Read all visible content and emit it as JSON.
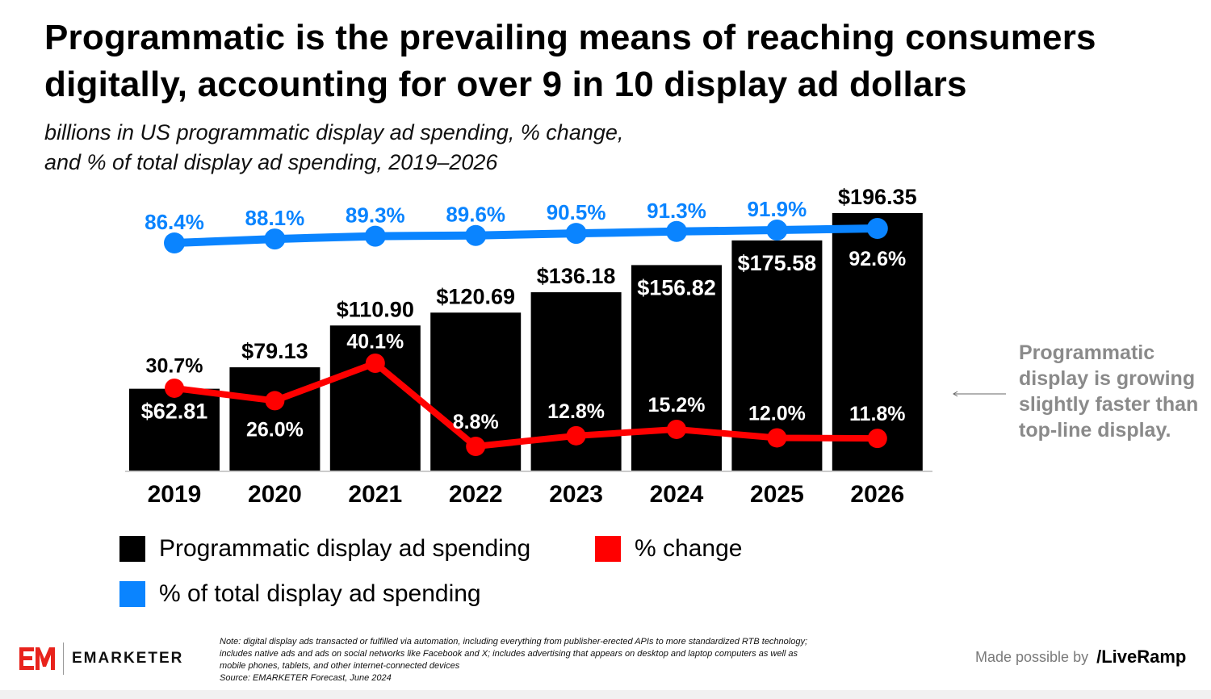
{
  "header": {
    "title": "Programmatic is the prevailing means of reaching consumers digitally, accounting for over 9 in 10 display ad dollars",
    "subtitle_line1": "billions in US programmatic display ad spending, % change,",
    "subtitle_line2": "and % of total display ad spending, 2019–2026"
  },
  "chart_data": {
    "type": "bar",
    "categories": [
      "2019",
      "2020",
      "2021",
      "2022",
      "2023",
      "2024",
      "2025",
      "2026"
    ],
    "series": [
      {
        "name": "Programmatic display ad spending",
        "type": "bar",
        "color": "#000000",
        "values": [
          62.81,
          79.13,
          110.9,
          120.69,
          136.18,
          156.82,
          175.58,
          196.35
        ],
        "labels": [
          "$62.81",
          "$79.13",
          "$110.90",
          "$120.69",
          "$136.18",
          "$156.82",
          "$175.58",
          "$196.35"
        ]
      },
      {
        "name": "% change",
        "type": "line",
        "color": "#ff0000",
        "values": [
          30.7,
          26.0,
          40.1,
          8.8,
          12.8,
          15.2,
          12.0,
          11.8
        ],
        "labels": [
          "30.7%",
          "26.0%",
          "40.1%",
          "8.8%",
          "12.8%",
          "15.2%",
          "12.0%",
          "11.8%"
        ]
      },
      {
        "name": "% of total display ad spending",
        "type": "line",
        "color": "#0a84ff",
        "values": [
          86.4,
          88.1,
          89.3,
          89.6,
          90.5,
          91.3,
          91.9,
          92.6
        ],
        "labels": [
          "86.4%",
          "88.1%",
          "89.3%",
          "89.6%",
          "90.5%",
          "91.3%",
          "91.9%",
          "92.6%"
        ]
      }
    ],
    "grid": false,
    "legend_position": "bottom-left"
  },
  "legend": {
    "spending": "Programmatic display ad spending",
    "change": "% change",
    "share": "% of total display ad spending"
  },
  "side_note": "Programmatic display is growing slightly faster than top-line display.",
  "footer": {
    "note_lines": [
      "Note: digital display ads transacted or fulfilled via automation, including everything from publisher-erected APIs to more standardized RTB technology;",
      "includes native ads and ads on social networks like Facebook and X; includes advertising that appears on desktop and laptop computers as well as",
      "mobile phones, tablets, and other internet-connected devices",
      "Source: EMARKETER Forecast, June 2024"
    ],
    "logo_text": "EMARKETER",
    "credit_text": "Made possible by",
    "credit_brand": "/LiveRamp"
  },
  "colors": {
    "bar": "#000000",
    "change": "#ff0000",
    "share": "#0a84ff",
    "side_note": "#8a8a8a"
  }
}
